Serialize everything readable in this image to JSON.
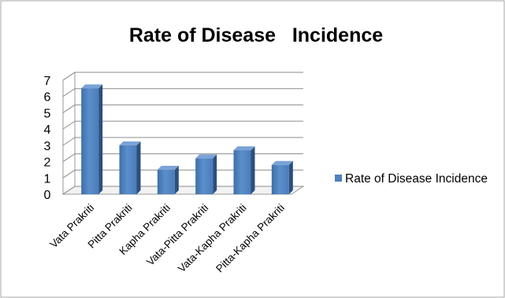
{
  "chart_data": {
    "type": "bar",
    "title": "Rate of Disease   Incidence",
    "categories": [
      "Vata Prakriti",
      "Pitta Prakriti",
      "Kapha Prakriti",
      "Vata-Pitta Prakriti",
      "Vata-Kapha Prakriti",
      "Pitta-Kapha Prakriti"
    ],
    "series": [
      {
        "name": "Rate of Disease Incidence",
        "values": [
          6.5,
          3.0,
          1.5,
          2.2,
          2.7,
          1.8
        ],
        "color": "#4f81bd"
      }
    ],
    "ylim": [
      0,
      7
    ],
    "yticks": [
      "0",
      "1",
      "2",
      "3",
      "4",
      "5",
      "6",
      "7"
    ],
    "grid": true,
    "legend_position": "right"
  }
}
